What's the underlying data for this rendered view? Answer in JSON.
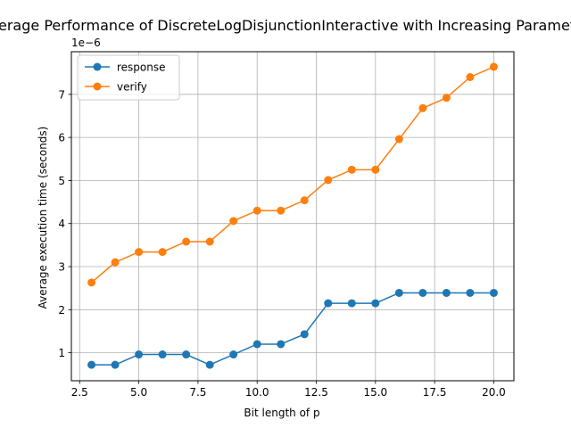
{
  "chart_data": {
    "type": "line",
    "title": "Average Performance of DiscreteLogDisjunctionInteractive with Increasing Parameter",
    "xlabel": "Bit length of p",
    "ylabel": "Average execution time (seconds)",
    "y_offset_label": "1e−6",
    "xlim": [
      2.15,
      20.85
    ],
    "ylim": [
      0.35,
      7.99
    ],
    "x_ticks": [
      2.5,
      5.0,
      7.5,
      10.0,
      12.5,
      15.0,
      17.5,
      20.0
    ],
    "x_tick_labels": [
      "2.5",
      "5.0",
      "7.5",
      "10.0",
      "12.5",
      "15.0",
      "17.5",
      "20.0"
    ],
    "y_ticks": [
      1,
      2,
      3,
      4,
      5,
      6,
      7
    ],
    "y_tick_labels": [
      "1",
      "2",
      "3",
      "4",
      "5",
      "6",
      "7"
    ],
    "grid": true,
    "legend_position": "top-left",
    "x": [
      3,
      4,
      5,
      6,
      7,
      8,
      9,
      10,
      11,
      12,
      13,
      14,
      15,
      16,
      17,
      18,
      19,
      20
    ],
    "series": [
      {
        "name": "response",
        "color": "#1f77b4",
        "values": [
          0.72,
          0.72,
          0.96,
          0.96,
          0.96,
          0.72,
          0.96,
          1.2,
          1.2,
          1.43,
          2.15,
          2.15,
          2.15,
          2.39,
          2.39,
          2.39,
          2.39,
          2.39
        ]
      },
      {
        "name": "verify",
        "color": "#ff7f0e",
        "values": [
          2.63,
          3.1,
          3.34,
          3.34,
          3.58,
          3.58,
          4.06,
          4.3,
          4.3,
          4.54,
          5.01,
          5.25,
          5.25,
          5.96,
          6.68,
          6.92,
          7.4,
          7.64
        ]
      }
    ]
  }
}
